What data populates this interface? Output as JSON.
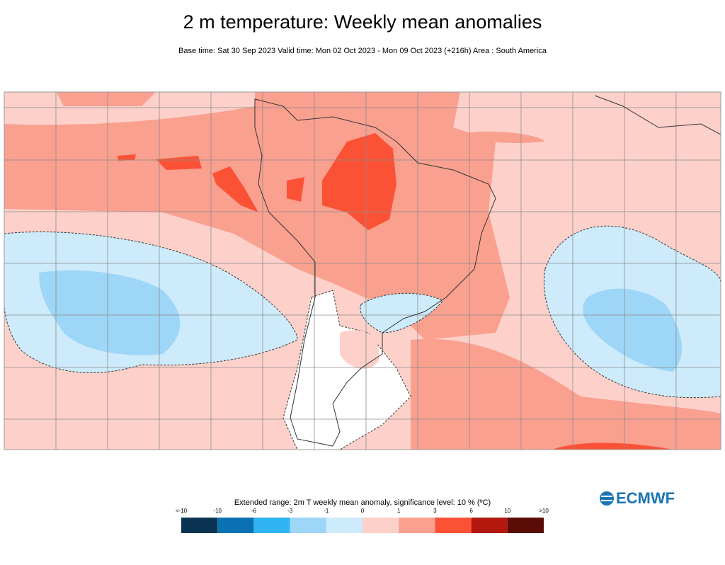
{
  "header": {
    "title": "2 m temperature: Weekly mean anomalies",
    "subtitle": "Base time: Sat 30 Sep 2023 Valid time: Mon 02 Oct 2023 - Mon 09 Oct 2023 (+216h) Area : South America"
  },
  "legend": {
    "title": "Extended range: 2m T weekly mean anomaly, significance level: 10 % (ºC)",
    "labels": [
      "<-10",
      "-10",
      "-6",
      "-3",
      "-1",
      "0",
      "1",
      "3",
      "6",
      "10",
      ">10"
    ],
    "colors": [
      "#0b3452",
      "#0a72b3",
      "#2fb4f4",
      "#9dd6f7",
      "#cdebfb",
      "#fdd0ca",
      "#f9a08f",
      "#fb5236",
      "#b2180e",
      "#5a0c06"
    ]
  },
  "logo": "ECMWF"
}
